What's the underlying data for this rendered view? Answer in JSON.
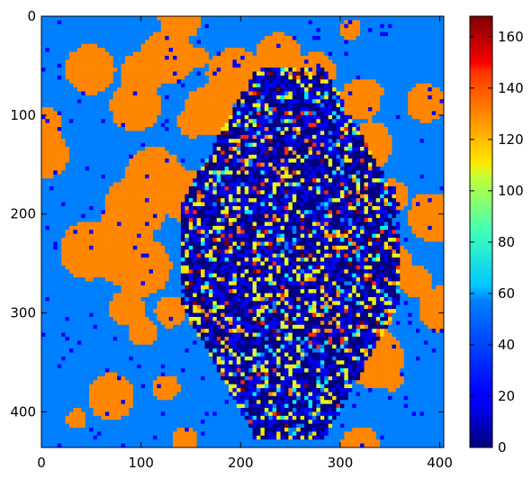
{
  "chart_data": {
    "type": "heatmap",
    "title": "",
    "xlabel": "",
    "ylabel": "",
    "xlim": [
      0,
      404
    ],
    "ylim": [
      436,
      0
    ],
    "xticks": [
      0,
      100,
      200,
      300,
      400
    ],
    "yticks": [
      0,
      100,
      200,
      300,
      400
    ],
    "colormap": "jet",
    "colorbar": {
      "vmin": 0,
      "vmax": 168,
      "ticks": [
        0,
        20,
        40,
        60,
        80,
        100,
        120,
        140,
        160
      ],
      "placement": "right"
    },
    "value_summary": {
      "dominant_values": [
        42,
        125
      ],
      "center_region_values": [
        0,
        20,
        60,
        100,
        110,
        140,
        168
      ]
    },
    "grid": false
  }
}
